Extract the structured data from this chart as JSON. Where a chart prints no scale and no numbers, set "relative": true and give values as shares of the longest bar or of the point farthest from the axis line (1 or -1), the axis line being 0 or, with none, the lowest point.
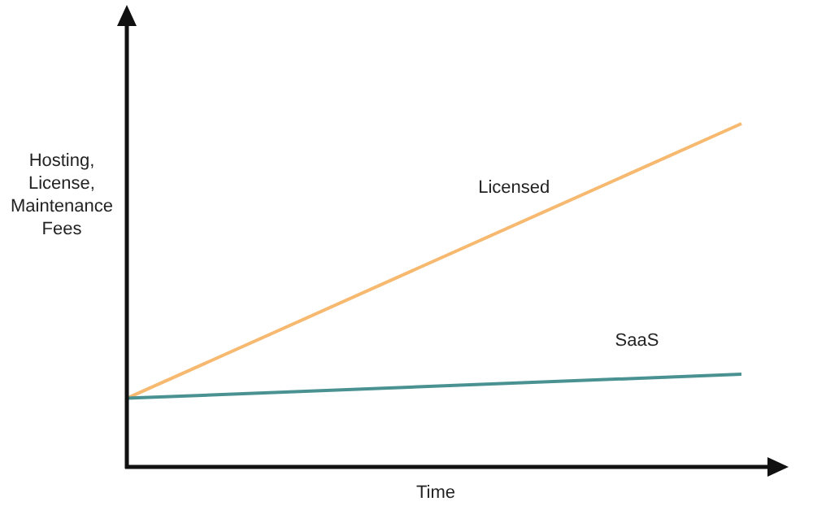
{
  "chart_data": {
    "type": "line",
    "relative": true,
    "xlabel": "Time",
    "ylabel": "Hosting,\nLicense,\nMaintenance\nFees",
    "categories": [
      null,
      null
    ],
    "series": [
      {
        "name": "Licensed",
        "color": "#f6b96f",
        "values": [
          0.2,
          1
        ]
      },
      {
        "name": "SaaS",
        "color": "#4a9292",
        "values": [
          0.2,
          0.27
        ]
      }
    ]
  }
}
